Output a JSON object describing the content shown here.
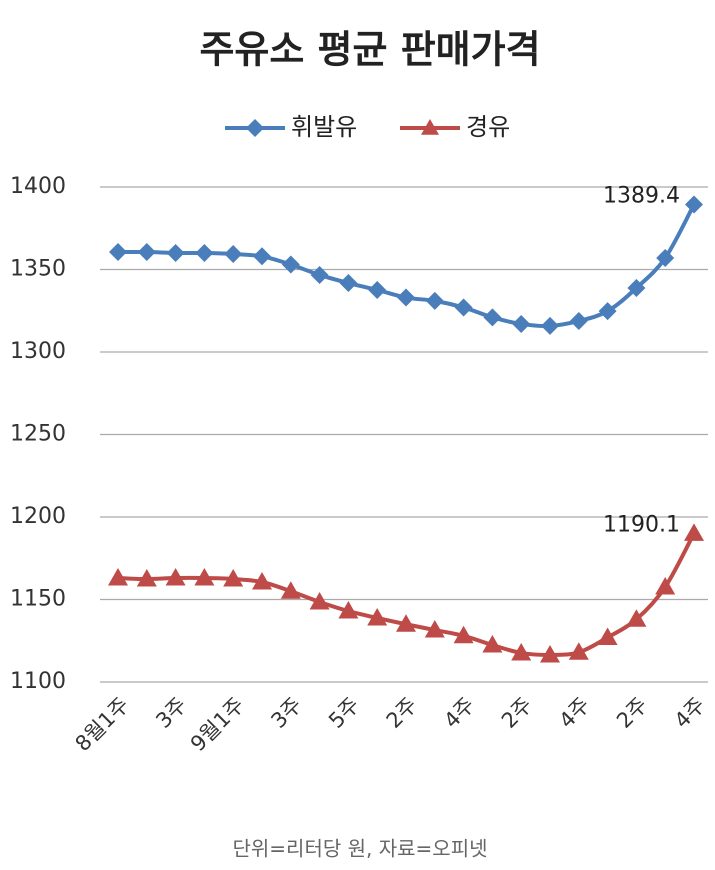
{
  "chart_data": {
    "type": "line",
    "title": "주유소 평균 판매가격",
    "footnote": "단위=리터당 원, 자료=오피넷",
    "categories": [
      "8월1주",
      null,
      "3주",
      null,
      "9월1주",
      null,
      "3주",
      null,
      "5주",
      null,
      "2주",
      null,
      "4주",
      null,
      "2주",
      null,
      "4주",
      null,
      "2주",
      null,
      "4주"
    ],
    "series": [
      {
        "name": "휘발유",
        "color": "#4a7ebb",
        "marker": "diamond",
        "values": [
          1360.6,
          1360.6,
          1360,
          1360,
          1359.4,
          1358,
          1353,
          1346.7,
          1341.8,
          1337.6,
          1333,
          1331,
          1327,
          1321,
          1317,
          1315.8,
          1318.8,
          1324.8,
          1338.8,
          1357,
          1389.4
        ]
      },
      {
        "name": "경유",
        "color": "#be4b48",
        "marker": "triangle",
        "values": [
          1163,
          1162.4,
          1163,
          1163,
          1162.4,
          1160.6,
          1155,
          1148.5,
          1143,
          1138.8,
          1135,
          1131.5,
          1128,
          1122.4,
          1117.6,
          1116.4,
          1118,
          1127,
          1138,
          1157.6,
          1190.1
        ]
      }
    ],
    "ylim": [
      1100,
      1400
    ],
    "yticks": [
      1100,
      1150,
      1200,
      1250,
      1300,
      1350,
      1400
    ],
    "grid": true
  }
}
